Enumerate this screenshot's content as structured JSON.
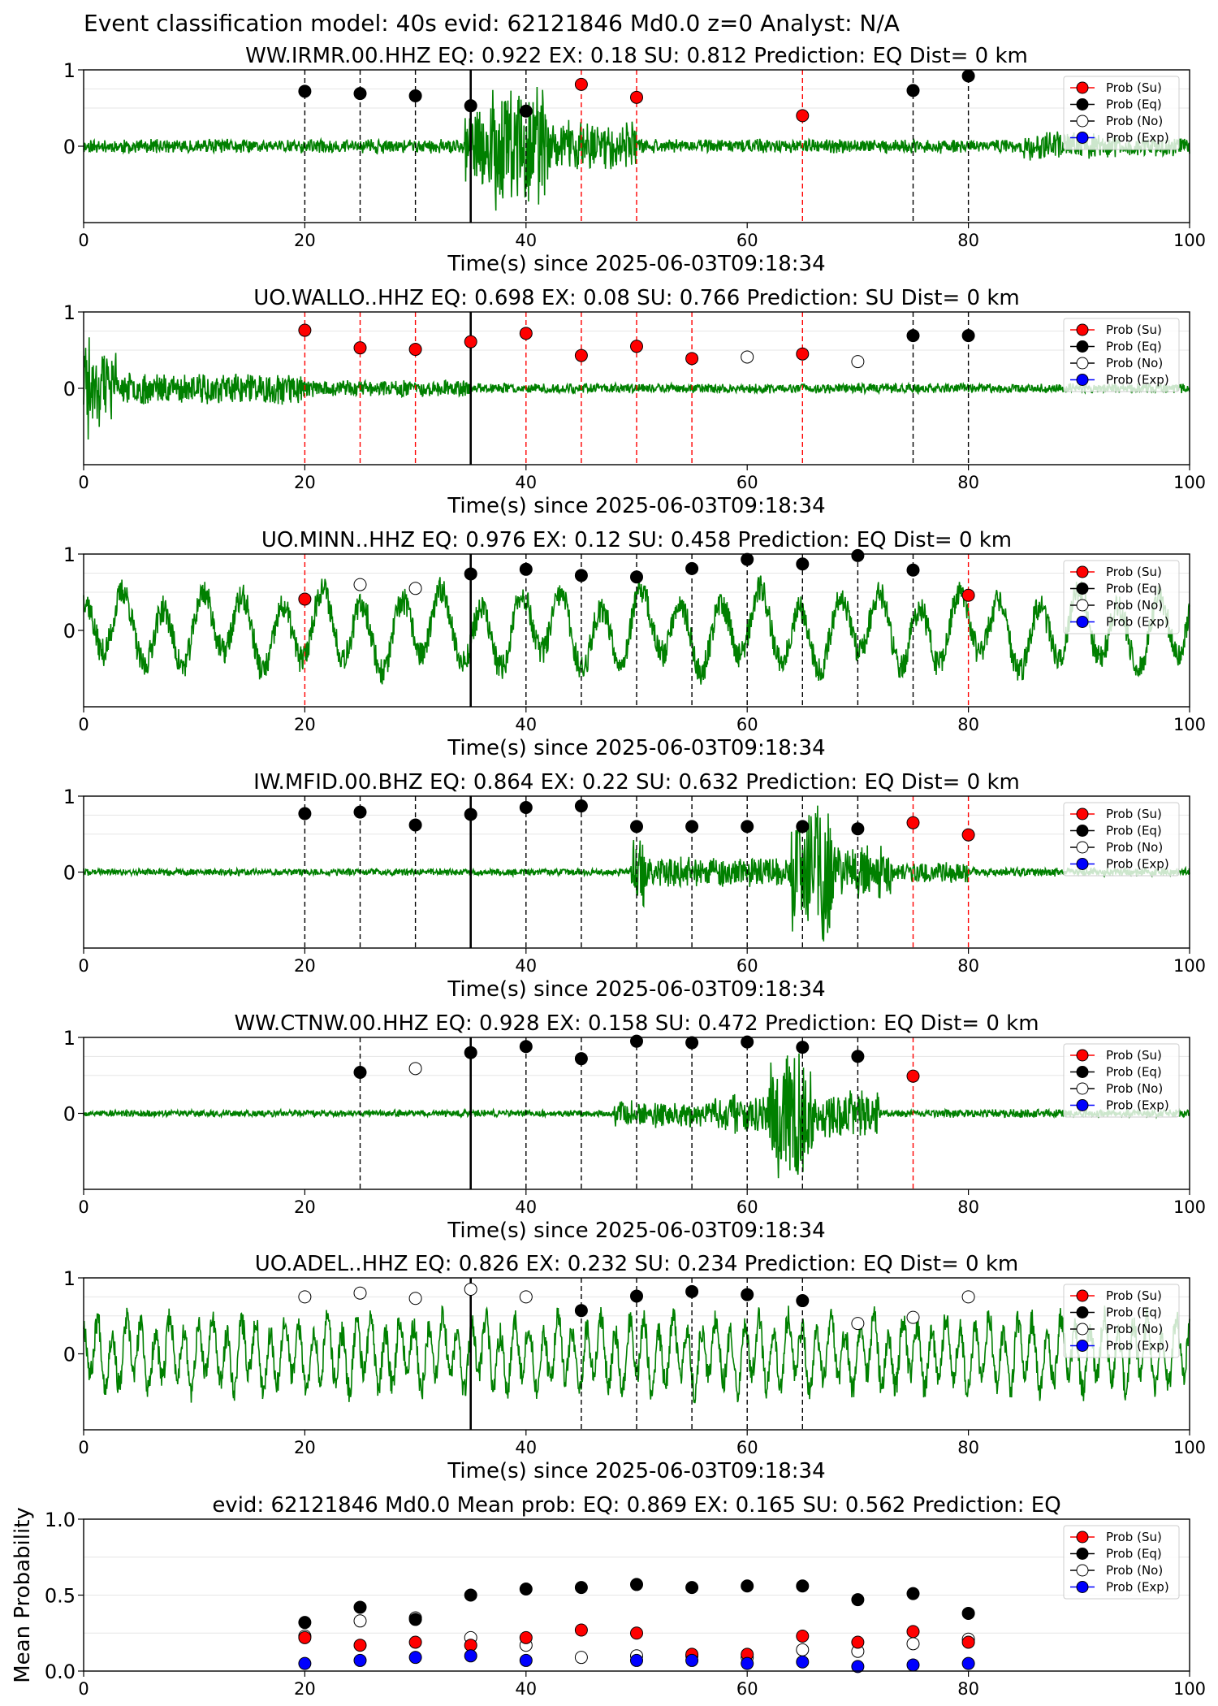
{
  "suptitle": "Event classification model: 40s evid: 62121846 Md0.0 z=0 Analyst: N/A",
  "legend": {
    "entries": [
      {
        "label": "Prob (Su)",
        "fill": "#ff0000"
      },
      {
        "label": "Prob (Eq)",
        "fill": "#000000"
      },
      {
        "label": "Prob (No)",
        "fill": "#ffffff"
      },
      {
        "label": "Prob (Exp)",
        "fill": "#0000ff"
      }
    ]
  },
  "colors": {
    "waveform": "#008000",
    "su": "#ff0000",
    "eq": "#000000",
    "no": "#ffffff",
    "exp": "#0000ff",
    "pick_line": "#000000",
    "grid": "#e6e6e6"
  },
  "chart_data": [
    {
      "type": "line",
      "title": "WW.IRMR.00.HHZ   EQ: 0.922  EX: 0.18  SU: 0.812   Prediction: EQ    Dist= 0 km",
      "xlabel": "Time(s) since 2025-06-03T09:18:34",
      "xlim": [
        0,
        100
      ],
      "ylim": [
        -1,
        1
      ],
      "xticks": [
        "0",
        "20",
        "40",
        "60",
        "80",
        "100"
      ],
      "yticks": [
        "1",
        "0"
      ],
      "pick_time": 35,
      "waveform": {
        "envelope": [
          [
            0,
            10,
            0.1
          ],
          [
            10,
            34.5,
            0.1
          ],
          [
            34.5,
            37,
            0.6
          ],
          [
            37,
            42,
            0.95
          ],
          [
            42,
            50,
            0.35
          ],
          [
            50,
            85,
            0.1
          ],
          [
            85,
            92,
            0.2
          ],
          [
            92,
            100,
            0.15
          ]
        ],
        "seed": 11
      },
      "markers": [
        {
          "x": 20,
          "y": 0.72,
          "class": "Eq",
          "line": "Eq"
        },
        {
          "x": 25,
          "y": 0.69,
          "class": "Eq",
          "line": "Eq"
        },
        {
          "x": 30,
          "y": 0.66,
          "class": "Eq",
          "line": "Eq"
        },
        {
          "x": 35,
          "y": 0.53,
          "class": "Eq",
          "line": null
        },
        {
          "x": 40,
          "y": 0.46,
          "class": "Eq",
          "line": "Eq"
        },
        {
          "x": 45,
          "y": 0.81,
          "class": "Su",
          "line": "Su"
        },
        {
          "x": 50,
          "y": 0.64,
          "class": "Su",
          "line": "Su"
        },
        {
          "x": 65,
          "y": 0.4,
          "class": "Su",
          "line": "Su"
        },
        {
          "x": 75,
          "y": 0.73,
          "class": "Eq",
          "line": "Eq"
        },
        {
          "x": 80,
          "y": 0.92,
          "class": "Eq",
          "line": "Eq"
        }
      ]
    },
    {
      "type": "line",
      "title": "UO.WALLO..HHZ   EQ: 0.698  EX: 0.08  SU: 0.766   Prediction: SU    Dist= 0 km",
      "xlabel": "Time(s) since 2025-06-03T09:18:34",
      "xlim": [
        0,
        100
      ],
      "ylim": [
        -1,
        1
      ],
      "xticks": [
        "0",
        "20",
        "40",
        "60",
        "80",
        "100"
      ],
      "yticks": [
        "1",
        "0"
      ],
      "pick_time": 35,
      "waveform": {
        "envelope": [
          [
            0,
            0.6,
            0.95
          ],
          [
            0.6,
            3,
            0.55
          ],
          [
            3,
            20,
            0.22
          ],
          [
            20,
            35,
            0.12
          ],
          [
            35,
            100,
            0.07
          ]
        ],
        "seed": 23
      },
      "markers": [
        {
          "x": 20,
          "y": 0.76,
          "class": "Su",
          "line": "Su"
        },
        {
          "x": 25,
          "y": 0.53,
          "class": "Su",
          "line": "Su"
        },
        {
          "x": 30,
          "y": 0.51,
          "class": "Su",
          "line": "Su"
        },
        {
          "x": 35,
          "y": 0.61,
          "class": "Su",
          "line": null
        },
        {
          "x": 40,
          "y": 0.72,
          "class": "Su",
          "line": "Su"
        },
        {
          "x": 45,
          "y": 0.43,
          "class": "Su",
          "line": "Su"
        },
        {
          "x": 50,
          "y": 0.55,
          "class": "Su",
          "line": "Su"
        },
        {
          "x": 55,
          "y": 0.39,
          "class": "Su",
          "line": "Su"
        },
        {
          "x": 60,
          "y": 0.41,
          "class": "No",
          "line": null
        },
        {
          "x": 65,
          "y": 0.45,
          "class": "Su",
          "line": "Su"
        },
        {
          "x": 70,
          "y": 0.35,
          "class": "No",
          "line": null
        },
        {
          "x": 75,
          "y": 0.69,
          "class": "Eq",
          "line": "Eq"
        },
        {
          "x": 80,
          "y": 0.69,
          "class": "Eq",
          "line": "Eq"
        }
      ]
    },
    {
      "type": "line",
      "title": "UO.MINN..HHZ   EQ: 0.976  EX: 0.12  SU: 0.458   Prediction: EQ    Dist= 0 km",
      "xlabel": "Time(s) since 2025-06-03T09:18:34",
      "xlim": [
        0,
        100
      ],
      "ylim": [
        -1,
        1
      ],
      "xticks": [
        "0",
        "20",
        "40",
        "60",
        "80",
        "100"
      ],
      "yticks": [
        "1",
        "0"
      ],
      "pick_time": 35,
      "waveform": {
        "envelope": [
          [
            0,
            100,
            0.55
          ]
        ],
        "period": 3.6,
        "seed": 37
      },
      "markers": [
        {
          "x": 20,
          "y": 0.41,
          "class": "Su",
          "line": "Su"
        },
        {
          "x": 25,
          "y": 0.6,
          "class": "No",
          "line": null
        },
        {
          "x": 30,
          "y": 0.55,
          "class": "No",
          "line": null
        },
        {
          "x": 35,
          "y": 0.74,
          "class": "Eq",
          "line": null
        },
        {
          "x": 40,
          "y": 0.8,
          "class": "Eq",
          "line": "Eq"
        },
        {
          "x": 45,
          "y": 0.72,
          "class": "Eq",
          "line": "Eq"
        },
        {
          "x": 50,
          "y": 0.7,
          "class": "Eq",
          "line": "Eq"
        },
        {
          "x": 55,
          "y": 0.81,
          "class": "Eq",
          "line": "Eq"
        },
        {
          "x": 60,
          "y": 0.93,
          "class": "Eq",
          "line": "Eq"
        },
        {
          "x": 65,
          "y": 0.87,
          "class": "Eq",
          "line": "Eq"
        },
        {
          "x": 70,
          "y": 0.98,
          "class": "Eq",
          "line": "Eq"
        },
        {
          "x": 75,
          "y": 0.79,
          "class": "Eq",
          "line": "Eq"
        },
        {
          "x": 80,
          "y": 0.46,
          "class": "Su",
          "line": "Su"
        }
      ]
    },
    {
      "type": "line",
      "title": "IW.MFID.00.BHZ   EQ: 0.864  EX: 0.22  SU: 0.632   Prediction: EQ    Dist= 0 km",
      "xlabel": "Time(s) since 2025-06-03T09:18:34",
      "xlim": [
        0,
        100
      ],
      "ylim": [
        -1,
        1
      ],
      "xticks": [
        "0",
        "20",
        "40",
        "60",
        "80",
        "100"
      ],
      "yticks": [
        "1",
        "0"
      ],
      "pick_time": 35,
      "waveform": {
        "envelope": [
          [
            0,
            49.5,
            0.05
          ],
          [
            49.5,
            51,
            0.5
          ],
          [
            51,
            64,
            0.22
          ],
          [
            64,
            68,
            0.95
          ],
          [
            68,
            73,
            0.4
          ],
          [
            73,
            80,
            0.15
          ],
          [
            80,
            100,
            0.06
          ]
        ],
        "seed": 41
      },
      "markers": [
        {
          "x": 20,
          "y": 0.77,
          "class": "Eq",
          "line": "Eq"
        },
        {
          "x": 25,
          "y": 0.79,
          "class": "Eq",
          "line": "Eq"
        },
        {
          "x": 30,
          "y": 0.62,
          "class": "Eq",
          "line": "Eq"
        },
        {
          "x": 35,
          "y": 0.76,
          "class": "Eq",
          "line": null
        },
        {
          "x": 40,
          "y": 0.85,
          "class": "Eq",
          "line": "Eq"
        },
        {
          "x": 45,
          "y": 0.87,
          "class": "Eq",
          "line": "Eq"
        },
        {
          "x": 50,
          "y": 0.6,
          "class": "Eq",
          "line": "Eq"
        },
        {
          "x": 55,
          "y": 0.6,
          "class": "Eq",
          "line": "Eq"
        },
        {
          "x": 60,
          "y": 0.6,
          "class": "Eq",
          "line": "Eq"
        },
        {
          "x": 65,
          "y": 0.6,
          "class": "Eq",
          "line": "Eq"
        },
        {
          "x": 70,
          "y": 0.57,
          "class": "Eq",
          "line": "Eq"
        },
        {
          "x": 75,
          "y": 0.65,
          "class": "Su",
          "line": "Su"
        },
        {
          "x": 80,
          "y": 0.49,
          "class": "Su",
          "line": "Su"
        }
      ]
    },
    {
      "type": "line",
      "title": "WW.CTNW.00.HHZ   EQ: 0.928  EX: 0.158  SU: 0.472   Prediction: EQ    Dist= 0 km",
      "xlabel": "Time(s) since 2025-06-03T09:18:34",
      "xlim": [
        0,
        100
      ],
      "ylim": [
        -1,
        1
      ],
      "xticks": [
        "0",
        "20",
        "40",
        "60",
        "80",
        "100"
      ],
      "yticks": [
        "1",
        "0"
      ],
      "pick_time": 35,
      "waveform": {
        "envelope": [
          [
            0,
            48,
            0.05
          ],
          [
            48,
            58,
            0.2
          ],
          [
            58,
            62,
            0.3
          ],
          [
            62,
            66,
            0.95
          ],
          [
            66,
            72,
            0.35
          ],
          [
            72,
            100,
            0.06
          ]
        ],
        "seed": 53
      },
      "markers": [
        {
          "x": 25,
          "y": 0.54,
          "class": "Eq",
          "line": "Eq"
        },
        {
          "x": 30,
          "y": 0.59,
          "class": "No",
          "line": null
        },
        {
          "x": 35,
          "y": 0.8,
          "class": "Eq",
          "line": null
        },
        {
          "x": 40,
          "y": 0.88,
          "class": "Eq",
          "line": "Eq"
        },
        {
          "x": 45,
          "y": 0.72,
          "class": "Eq",
          "line": "Eq"
        },
        {
          "x": 50,
          "y": 0.95,
          "class": "Eq",
          "line": "Eq"
        },
        {
          "x": 55,
          "y": 0.93,
          "class": "Eq",
          "line": "Eq"
        },
        {
          "x": 60,
          "y": 0.94,
          "class": "Eq",
          "line": "Eq"
        },
        {
          "x": 65,
          "y": 0.87,
          "class": "Eq",
          "line": "Eq"
        },
        {
          "x": 70,
          "y": 0.75,
          "class": "Eq",
          "line": "Eq"
        },
        {
          "x": 75,
          "y": 0.49,
          "class": "Su",
          "line": "Su"
        }
      ]
    },
    {
      "type": "line",
      "title": "UO.ADEL..HHZ   EQ: 0.826  EX: 0.232  SU: 0.234   Prediction: EQ    Dist= 0 km",
      "xlabel": "Time(s) since 2025-06-03T09:18:34",
      "xlim": [
        0,
        100
      ],
      "ylim": [
        -1,
        1
      ],
      "xticks": [
        "0",
        "20",
        "40",
        "60",
        "80",
        "100"
      ],
      "yticks": [
        "1",
        "0"
      ],
      "pick_time": 35,
      "waveform": {
        "envelope": [
          [
            0,
            100,
            0.5
          ]
        ],
        "period": 1.3,
        "seed": 67
      },
      "markers": [
        {
          "x": 20,
          "y": 0.75,
          "class": "No",
          "line": null
        },
        {
          "x": 25,
          "y": 0.8,
          "class": "No",
          "line": null
        },
        {
          "x": 30,
          "y": 0.73,
          "class": "No",
          "line": null
        },
        {
          "x": 35,
          "y": 0.85,
          "class": "No",
          "line": null
        },
        {
          "x": 40,
          "y": 0.75,
          "class": "No",
          "line": null
        },
        {
          "x": 45,
          "y": 0.57,
          "class": "Eq",
          "line": "Eq"
        },
        {
          "x": 50,
          "y": 0.76,
          "class": "Eq",
          "line": "Eq"
        },
        {
          "x": 55,
          "y": 0.82,
          "class": "Eq",
          "line": "Eq"
        },
        {
          "x": 60,
          "y": 0.78,
          "class": "Eq",
          "line": "Eq"
        },
        {
          "x": 65,
          "y": 0.7,
          "class": "Eq",
          "line": "Eq"
        },
        {
          "x": 70,
          "y": 0.4,
          "class": "No",
          "line": null
        },
        {
          "x": 75,
          "y": 0.48,
          "class": "No",
          "line": null
        },
        {
          "x": 80,
          "y": 0.75,
          "class": "No",
          "line": null
        }
      ]
    },
    {
      "type": "scatter",
      "title": "evid: 62121846  Md0.0   Mean prob:   EQ: 0.869  EX: 0.165  SU: 0.562   Prediction: EQ",
      "ylabel": "Mean Probability",
      "xlim": [
        0,
        100
      ],
      "ylim": [
        0,
        1
      ],
      "xticks": [
        "0",
        "20",
        "40",
        "60",
        "80",
        "100"
      ],
      "yticks": [
        "1.0",
        "0.5",
        "0.0"
      ],
      "x": [
        20,
        25,
        30,
        35,
        40,
        45,
        50,
        55,
        60,
        65,
        70,
        75,
        80
      ],
      "series": [
        {
          "name": "Prob (No)",
          "class": "No",
          "values": [
            0.23,
            0.33,
            0.35,
            0.22,
            0.17,
            0.09,
            0.1,
            0.1,
            0.09,
            0.14,
            0.13,
            0.18,
            0.21
          ]
        },
        {
          "name": "Prob (Su)",
          "class": "Su",
          "values": [
            0.22,
            0.17,
            0.19,
            0.17,
            0.22,
            0.27,
            0.25,
            0.11,
            0.11,
            0.23,
            0.19,
            0.26,
            0.19
          ]
        },
        {
          "name": "Prob (Eq)",
          "class": "Eq",
          "values": [
            0.32,
            0.42,
            0.34,
            0.5,
            0.54,
            0.55,
            0.57,
            0.55,
            0.56,
            0.56,
            0.47,
            0.51,
            0.38
          ]
        },
        {
          "name": "Prob (Exp)",
          "class": "Exp",
          "values": [
            0.05,
            0.07,
            0.09,
            0.1,
            0.07,
            null,
            0.07,
            0.07,
            0.05,
            0.06,
            0.03,
            0.04,
            0.05
          ]
        }
      ]
    }
  ]
}
